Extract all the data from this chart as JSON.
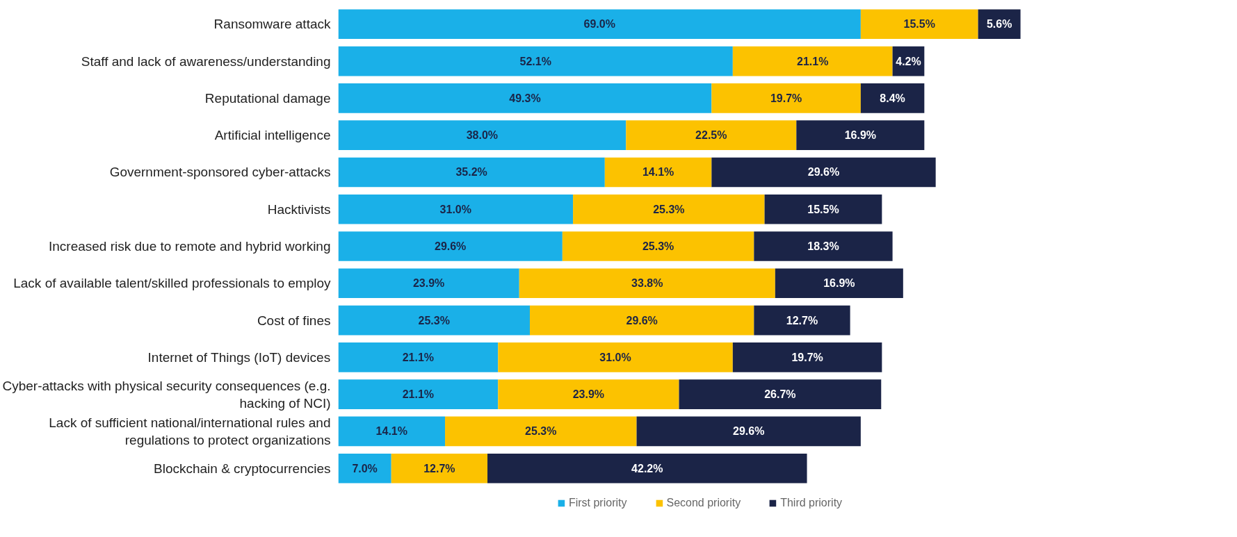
{
  "chart_data": {
    "type": "bar",
    "orientation": "horizontal",
    "stacked": true,
    "legend": "bottom",
    "grid": false,
    "categories": [
      "Ransomware attack",
      "Staff and lack of awareness/understanding",
      "Reputational damage",
      "Artificial intelligence",
      "Government-sponsored cyber-attacks",
      "Hacktivists",
      "Increased risk due to remote and hybrid working",
      "Lack of available talent/skilled professionals to employ",
      "Cost of fines",
      "Internet of Things (IoT) devices",
      "Cyber-attacks with physical security consequences (e.g. hacking of NCI)",
      "Lack of sufficient national/international rules and regulations to protect organizations",
      "Blockchain & cryptocurrencies"
    ],
    "series": [
      {
        "name": "First priority",
        "color": "#1ab0e8",
        "values": [
          69.0,
          52.1,
          49.3,
          38.0,
          35.2,
          31.0,
          29.6,
          23.9,
          25.3,
          21.1,
          21.1,
          14.1,
          7.0
        ],
        "value_labels": [
          "69.0%",
          "52.1%",
          "49.3%",
          "38.0%",
          "35.2%",
          "31.0%",
          "29.6%",
          "23.9%",
          "25.3%",
          "21.1%",
          "21.1%",
          "14.1%",
          "7.0%"
        ]
      },
      {
        "name": "Second priority",
        "color": "#fcc200",
        "values": [
          15.5,
          21.1,
          19.7,
          22.5,
          14.1,
          25.3,
          25.3,
          33.8,
          29.6,
          31.0,
          23.9,
          25.3,
          12.7
        ],
        "value_labels": [
          "15.5%",
          "21.1%",
          "19.7%",
          "22.5%",
          "14.1%",
          "25.3%",
          "25.3%",
          "33.8%",
          "29.6%",
          "31.0%",
          "23.9%",
          "25.3%",
          "12.7%"
        ]
      },
      {
        "name": "Third priority",
        "color": "#1b2447",
        "values": [
          5.6,
          4.2,
          8.4,
          16.9,
          29.6,
          15.5,
          18.3,
          16.9,
          12.7,
          19.7,
          26.7,
          29.6,
          42.2
        ],
        "value_labels": [
          "5.6%",
          "4.2%",
          "8.4%",
          "16.9%",
          "29.6%",
          "15.5%",
          "18.3%",
          "16.9%",
          "12.7%",
          "19.7%",
          "26.7%",
          "29.6%",
          "42.2%"
        ]
      }
    ]
  }
}
